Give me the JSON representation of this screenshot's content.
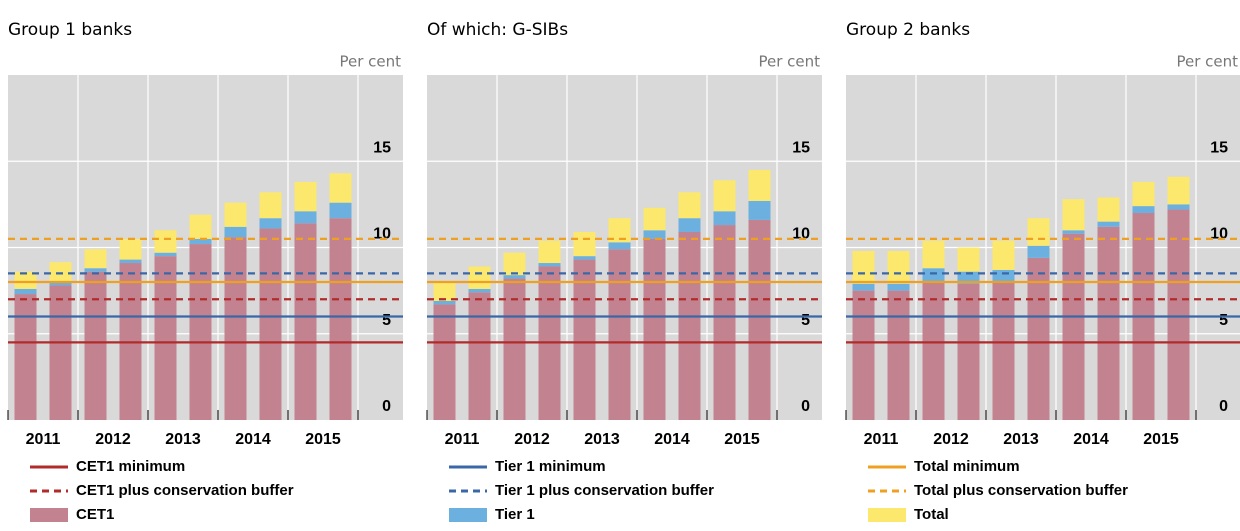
{
  "chart_data": [
    {
      "type": "bar",
      "stacked": true,
      "title": "Group 1 banks",
      "unit_label": "Per cent",
      "categories": [
        "2011",
        null,
        "2012",
        null,
        "2013",
        null,
        "2014",
        null,
        "2015",
        null
      ],
      "series": [
        {
          "values": [
            7.3,
            7.8,
            8.6,
            9.1,
            9.5,
            10.2,
            10.6,
            11.1,
            11.4,
            11.7
          ]
        },
        {
          "values": [
            0.3,
            0.15,
            0.2,
            0.2,
            0.2,
            0.3,
            0.6,
            0.6,
            0.7,
            0.9
          ]
        },
        {
          "values": [
            1.0,
            1.2,
            1.1,
            1.2,
            1.3,
            1.4,
            1.4,
            1.5,
            1.7,
            1.7
          ]
        }
      ],
      "ylim": [
        0,
        20
      ],
      "yticks": [
        0,
        5,
        10,
        15
      ],
      "grid": true
    },
    {
      "type": "bar",
      "stacked": true,
      "title": "Of which: G-SIBs",
      "unit_label": "Per cent",
      "categories": [
        "2011",
        null,
        "2012",
        null,
        "2013",
        null,
        "2014",
        null,
        "2015",
        null
      ],
      "series": [
        {
          "values": [
            6.7,
            7.4,
            8.2,
            8.9,
            9.3,
            9.9,
            10.5,
            10.9,
            11.3,
            11.6
          ]
        },
        {
          "values": [
            0.2,
            0.2,
            0.2,
            0.2,
            0.2,
            0.4,
            0.5,
            0.8,
            0.8,
            1.1
          ]
        },
        {
          "values": [
            1.1,
            1.3,
            1.3,
            1.3,
            1.4,
            1.4,
            1.3,
            1.5,
            1.8,
            1.8
          ]
        }
      ],
      "ylim": [
        0,
        20
      ],
      "yticks": [
        0,
        5,
        10,
        15
      ],
      "grid": true
    },
    {
      "type": "bar",
      "stacked": true,
      "title": "Group 2 banks",
      "unit_label": "Per cent",
      "categories": [
        "2011",
        null,
        "2012",
        null,
        "2013",
        null,
        "2014",
        null,
        "2015",
        null
      ],
      "series": [
        {
          "values": [
            7.5,
            7.5,
            8.0,
            7.9,
            8.0,
            9.4,
            10.8,
            11.2,
            12.0,
            12.2
          ]
        },
        {
          "values": [
            0.4,
            0.4,
            0.8,
            0.7,
            0.7,
            0.7,
            0.2,
            0.3,
            0.4,
            0.3
          ]
        },
        {
          "values": [
            1.9,
            1.9,
            1.6,
            1.4,
            1.7,
            1.6,
            1.8,
            1.4,
            1.4,
            1.6
          ]
        }
      ],
      "ylim": [
        0,
        20
      ],
      "yticks": [
        0,
        5,
        10,
        15
      ],
      "grid": true
    }
  ],
  "legend_lines": [
    {
      "name": "CET1 minimum",
      "color": "#b22b2b",
      "dashed": false,
      "value": 4.5
    },
    {
      "name": "CET1 plus conservation buffer",
      "color": "#b22b2b",
      "dashed": true,
      "value": 7
    },
    {
      "name": "Tier 1 minimum",
      "color": "#3a67a8",
      "dashed": false,
      "value": 6
    },
    {
      "name": "Tier 1 plus conservation buffer",
      "color": "#3a67a8",
      "dashed": true,
      "value": 8.5
    },
    {
      "name": "Total minimum",
      "color": "#f0a020",
      "dashed": false,
      "value": 8
    },
    {
      "name": "Total plus conservation buffer",
      "color": "#f0a020",
      "dashed": true,
      "value": 10.5
    }
  ],
  "legend_series": [
    {
      "name": "CET1",
      "color": "#c3828f"
    },
    {
      "name": "Tier 1",
      "color": "#6cb0e0"
    },
    {
      "name": "Total",
      "color": "#fde86e"
    }
  ]
}
